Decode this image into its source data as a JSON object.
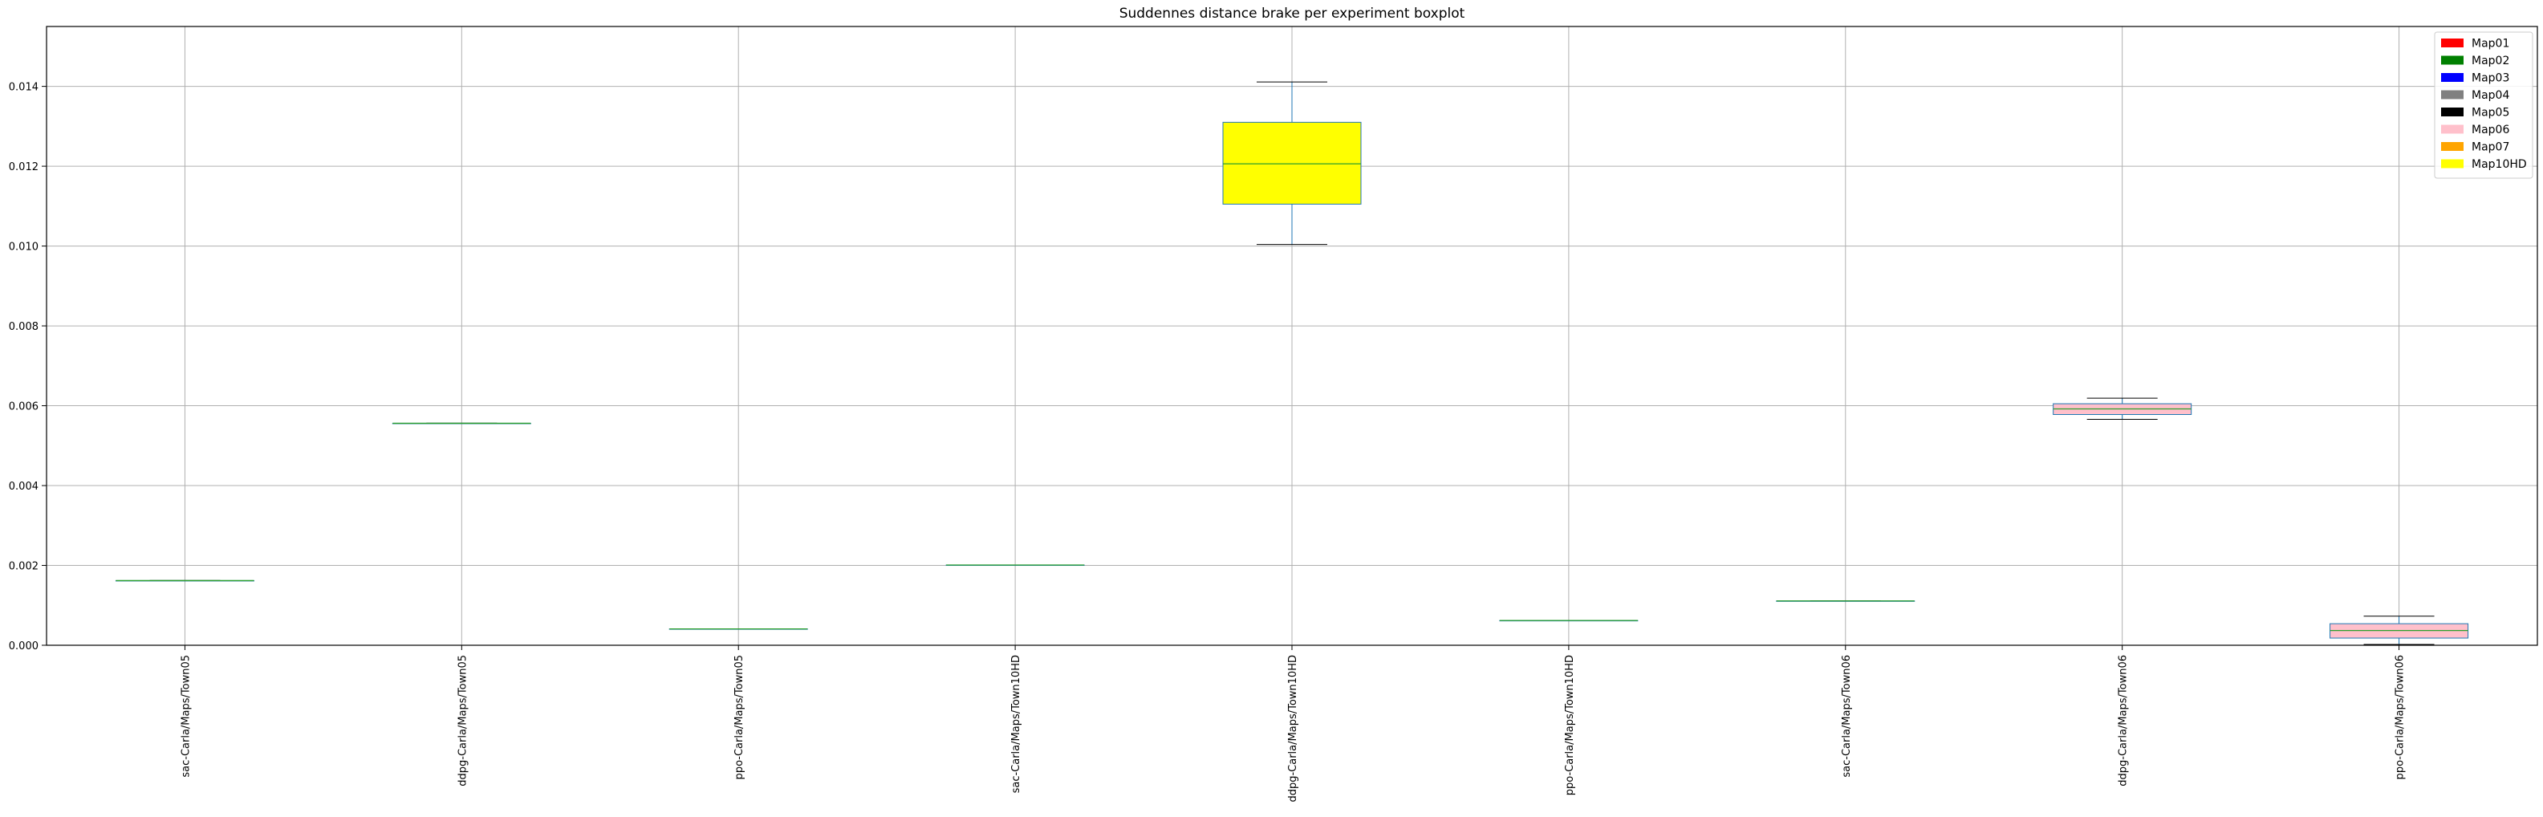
{
  "chart_data": {
    "type": "boxplot",
    "title": "Suddennes distance brake per experiment boxplot",
    "xlabel": "",
    "ylabel": "",
    "ylim": [
      0,
      0.0155
    ],
    "yticks": [
      0.0,
      0.002,
      0.004,
      0.006,
      0.008,
      0.01,
      0.012,
      0.014
    ],
    "ytick_labels": [
      "0.000",
      "0.002",
      "0.004",
      "0.006",
      "0.008",
      "0.010",
      "0.012",
      "0.014"
    ],
    "grid": true,
    "legend_position": "top-right",
    "categories": [
      "sac-Carla/Maps/Town05",
      "ddpg-Carla/Maps/Town05",
      "ppo-Carla/Maps/Town05",
      "sac-Carla/Maps/Town10HD",
      "ddpg-Carla/Maps/Town10HD",
      "ppo-Carla/Maps/Town10HD",
      "sac-Carla/Maps/Town06",
      "ddpg-Carla/Maps/Town06",
      "ppo-Carla/Maps/Town06"
    ],
    "boxes": [
      {
        "whislo": 0.00162,
        "q1": 0.00162,
        "med": 0.00162,
        "q3": 0.00162,
        "whishi": 0.00162,
        "fill": "#ffffff"
      },
      {
        "whislo": 0.00556,
        "q1": 0.00556,
        "med": 0.00556,
        "q3": 0.00556,
        "whishi": 0.00556,
        "fill": "#ffffff"
      },
      {
        "whislo": 0.00041,
        "q1": 0.00041,
        "med": 0.00041,
        "q3": 0.00041,
        "whishi": 0.00041,
        "fill": "#ffffff"
      },
      {
        "whislo": 0.00201,
        "q1": 0.00201,
        "med": 0.00201,
        "q3": 0.00201,
        "whishi": 0.00201,
        "fill": "#ffffff"
      },
      {
        "whislo": 0.01004,
        "q1": 0.01105,
        "med": 0.01206,
        "q3": 0.0131,
        "whishi": 0.01411,
        "fill": "#ffff00"
      },
      {
        "whislo": 0.00062,
        "q1": 0.00062,
        "med": 0.00062,
        "q3": 0.00062,
        "whishi": 0.00062,
        "fill": "#ffffff"
      },
      {
        "whislo": 0.00111,
        "q1": 0.00111,
        "med": 0.00111,
        "q3": 0.00111,
        "whishi": 0.00111,
        "fill": "#ffffff"
      },
      {
        "whislo": 0.00566,
        "q1": 0.00578,
        "med": 0.00592,
        "q3": 0.00605,
        "whishi": 0.00619,
        "fill": "#ffc0cb"
      },
      {
        "whislo": 2e-05,
        "q1": 0.00018,
        "med": 0.00037,
        "q3": 0.00054,
        "whishi": 0.00073,
        "fill": "#ffc0cb"
      }
    ],
    "legend": [
      {
        "label": "Map01",
        "color": "#ff0000"
      },
      {
        "label": "Map02",
        "color": "#008000"
      },
      {
        "label": "Map03",
        "color": "#0000ff"
      },
      {
        "label": "Map04",
        "color": "#808080"
      },
      {
        "label": "Map05",
        "color": "#000000"
      },
      {
        "label": "Map06",
        "color": "#ffc0cb"
      },
      {
        "label": "Map07",
        "color": "#ffa500"
      },
      {
        "label": "Map10HD",
        "color": "#ffff00"
      }
    ],
    "colors": {
      "box_edge": "#1f77b4",
      "median": "#2ca02c",
      "whisker": "#1f77b4",
      "cap": "#000000",
      "grid": "#b0b0b0"
    }
  }
}
